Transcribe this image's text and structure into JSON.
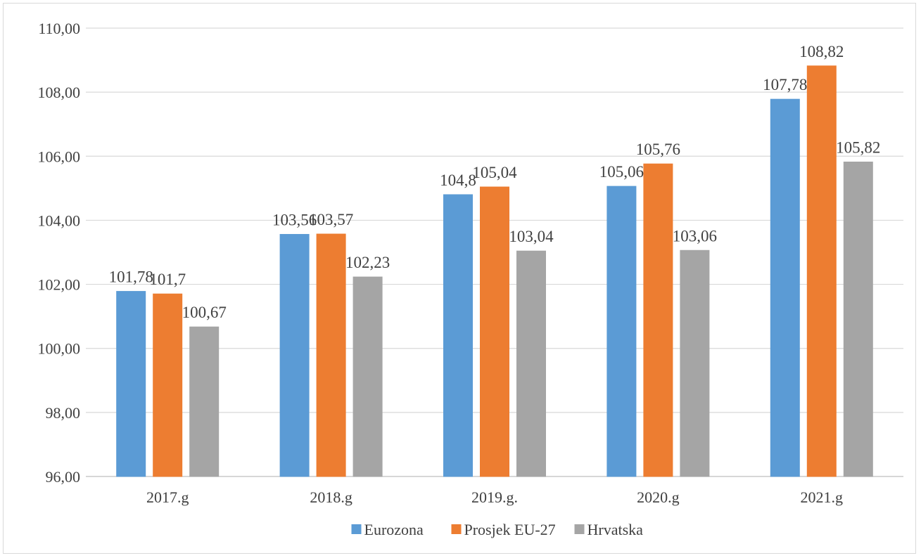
{
  "chart_data": {
    "type": "bar",
    "title": "",
    "xlabel": "",
    "ylabel": "",
    "categories": [
      "2017.g",
      "2018.g",
      "2019.g.",
      "2020.g",
      "2021.g"
    ],
    "series": [
      {
        "name": "Eurozona",
        "color": "#5b9bd5",
        "values": [
          101.78,
          103.56,
          104.8,
          105.06,
          107.78
        ],
        "labels": [
          "101,78",
          "103,56",
          "104,8",
          "105,06",
          "107,78"
        ]
      },
      {
        "name": "Prosjek EU-27",
        "color": "#ed7d31",
        "values": [
          101.7,
          103.57,
          105.04,
          105.76,
          108.82
        ],
        "labels": [
          "101,7",
          "103,57",
          "105,04",
          "105,76",
          "108,82"
        ]
      },
      {
        "name": "Hrvatska",
        "color": "#a5a5a5",
        "values": [
          100.67,
          102.23,
          103.04,
          103.06,
          105.82
        ],
        "labels": [
          "100,67",
          "102,23",
          "103,04",
          "103,06",
          "105,82"
        ]
      }
    ],
    "ylim": [
      96,
      110
    ],
    "yticks": [
      96,
      98,
      100,
      102,
      104,
      106,
      108,
      110
    ],
    "ytick_labels": [
      "96,00",
      "98,00",
      "100,00",
      "102,00",
      "104,00",
      "106,00",
      "108,00",
      "110,00"
    ],
    "grid": true,
    "legend_position": "bottom"
  }
}
